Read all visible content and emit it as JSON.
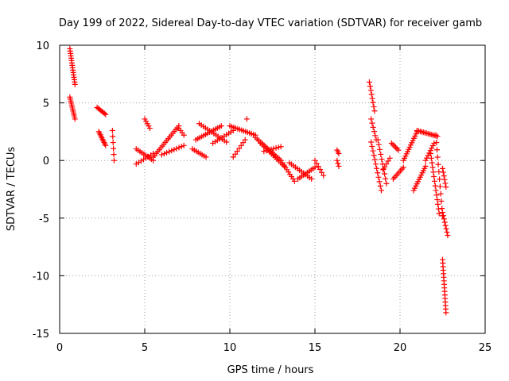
{
  "chart_data": {
    "type": "scatter",
    "title": "Day 199 of 2022, Sidereal Day-to-day VTEC variation (SDTVAR) for receiver gamb",
    "xlabel": "GPS time / hours",
    "ylabel": "SDTVAR / TECUs",
    "xlim": [
      0,
      25
    ],
    "ylim": [
      -15,
      10
    ],
    "xticks": [
      0,
      5,
      10,
      15,
      20,
      25
    ],
    "xtick_labels": [
      "0",
      "5",
      "10",
      "15",
      "20",
      "25"
    ],
    "yticks": [
      -15,
      -10,
      -5,
      0,
      5,
      10
    ],
    "ytick_labels": [
      "-15",
      "-10",
      "-5",
      "0",
      "5",
      "10"
    ],
    "grid": true,
    "marker": "+",
    "color": "#ff0000",
    "segments": [
      {
        "x0": 0.6,
        "y0": 9.7,
        "x1": 0.9,
        "y1": 6.6,
        "n": 16
      },
      {
        "x0": 0.6,
        "y0": 5.5,
        "x1": 0.9,
        "y1": 3.6,
        "n": 12
      },
      {
        "x0": 2.2,
        "y0": 4.6,
        "x1": 2.7,
        "y1": 4.0,
        "n": 8
      },
      {
        "x0": 2.3,
        "y0": 2.5,
        "x1": 2.7,
        "y1": 1.3,
        "n": 10
      },
      {
        "x0": 3.1,
        "y0": 2.6,
        "x1": 3.2,
        "y1": 0.0,
        "n": 6
      },
      {
        "x0": 4.5,
        "y0": 1.0,
        "x1": 5.5,
        "y1": 0.0,
        "n": 10
      },
      {
        "x0": 4.5,
        "y0": -0.3,
        "x1": 5.5,
        "y1": 0.6,
        "n": 8
      },
      {
        "x0": 5.0,
        "y0": 3.6,
        "x1": 5.3,
        "y1": 2.8,
        "n": 5
      },
      {
        "x0": 5.5,
        "y0": 0.3,
        "x1": 7.0,
        "y1": 3.0,
        "n": 18
      },
      {
        "x0": 6.0,
        "y0": 0.5,
        "x1": 7.3,
        "y1": 1.3,
        "n": 10
      },
      {
        "x0": 7.0,
        "y0": 2.8,
        "x1": 7.3,
        "y1": 2.2,
        "n": 4
      },
      {
        "x0": 7.8,
        "y0": 1.0,
        "x1": 8.6,
        "y1": 0.3,
        "n": 8
      },
      {
        "x0": 8.0,
        "y0": 1.8,
        "x1": 9.5,
        "y1": 3.0,
        "n": 14
      },
      {
        "x0": 8.2,
        "y0": 3.2,
        "x1": 9.8,
        "y1": 1.6,
        "n": 14
      },
      {
        "x0": 9.0,
        "y0": 1.5,
        "x1": 10.2,
        "y1": 2.6,
        "n": 10
      },
      {
        "x0": 10.0,
        "y0": 3.0,
        "x1": 11.5,
        "y1": 2.2,
        "n": 14
      },
      {
        "x0": 10.2,
        "y0": 0.3,
        "x1": 10.9,
        "y1": 1.8,
        "n": 7
      },
      {
        "x0": 11.0,
        "y0": 3.6,
        "x1": 11.0,
        "y1": 3.6,
        "n": 1
      },
      {
        "x0": 11.5,
        "y0": 2.0,
        "x1": 13.0,
        "y1": 0.0,
        "n": 16
      },
      {
        "x0": 11.8,
        "y0": 1.5,
        "x1": 13.2,
        "y1": -0.5,
        "n": 14
      },
      {
        "x0": 12.0,
        "y0": 0.8,
        "x1": 13.0,
        "y1": 1.2,
        "n": 8
      },
      {
        "x0": 13.0,
        "y0": 0.0,
        "x1": 13.8,
        "y1": -1.8,
        "n": 10
      },
      {
        "x0": 13.5,
        "y0": -0.2,
        "x1": 14.8,
        "y1": -1.6,
        "n": 12
      },
      {
        "x0": 14.0,
        "y0": -1.6,
        "x1": 15.0,
        "y1": -0.6,
        "n": 10
      },
      {
        "x0": 15.0,
        "y0": 0.0,
        "x1": 15.5,
        "y1": -1.3,
        "n": 6
      },
      {
        "x0": 16.3,
        "y0": 0.9,
        "x1": 16.4,
        "y1": 0.6,
        "n": 3
      },
      {
        "x0": 16.3,
        "y0": 0.0,
        "x1": 16.4,
        "y1": -0.5,
        "n": 3
      },
      {
        "x0": 18.2,
        "y0": 6.8,
        "x1": 18.5,
        "y1": 4.3,
        "n": 8
      },
      {
        "x0": 18.3,
        "y0": 3.6,
        "x1": 18.6,
        "y1": 1.8,
        "n": 6
      },
      {
        "x0": 18.3,
        "y0": 1.6,
        "x1": 18.9,
        "y1": -2.6,
        "n": 12
      },
      {
        "x0": 18.7,
        "y0": 1.8,
        "x1": 19.2,
        "y1": -2.0,
        "n": 10
      },
      {
        "x0": 19.0,
        "y0": -0.8,
        "x1": 19.4,
        "y1": 0.2,
        "n": 5
      },
      {
        "x0": 19.5,
        "y0": 1.5,
        "x1": 19.9,
        "y1": 0.9,
        "n": 6
      },
      {
        "x0": 19.6,
        "y0": -1.6,
        "x1": 20.2,
        "y1": -0.6,
        "n": 8
      },
      {
        "x0": 20.2,
        "y0": 0.0,
        "x1": 21.0,
        "y1": 2.5,
        "n": 14
      },
      {
        "x0": 20.8,
        "y0": -2.6,
        "x1": 21.5,
        "y1": -0.5,
        "n": 12
      },
      {
        "x0": 21.0,
        "y0": 2.6,
        "x1": 22.2,
        "y1": 2.1,
        "n": 14
      },
      {
        "x0": 21.5,
        "y0": 0.0,
        "x1": 22.0,
        "y1": 1.5,
        "n": 8
      },
      {
        "x0": 21.8,
        "y0": 0.6,
        "x1": 22.3,
        "y1": -4.6,
        "n": 14
      },
      {
        "x0": 22.1,
        "y0": 2.2,
        "x1": 22.5,
        "y1": -4.8,
        "n": 12
      },
      {
        "x0": 22.5,
        "y0": -0.7,
        "x1": 22.7,
        "y1": -2.3,
        "n": 6
      },
      {
        "x0": 22.5,
        "y0": -4.5,
        "x1": 22.8,
        "y1": -6.5,
        "n": 8
      },
      {
        "x0": 22.5,
        "y0": -8.6,
        "x1": 22.7,
        "y1": -13.2,
        "n": 16
      }
    ]
  }
}
